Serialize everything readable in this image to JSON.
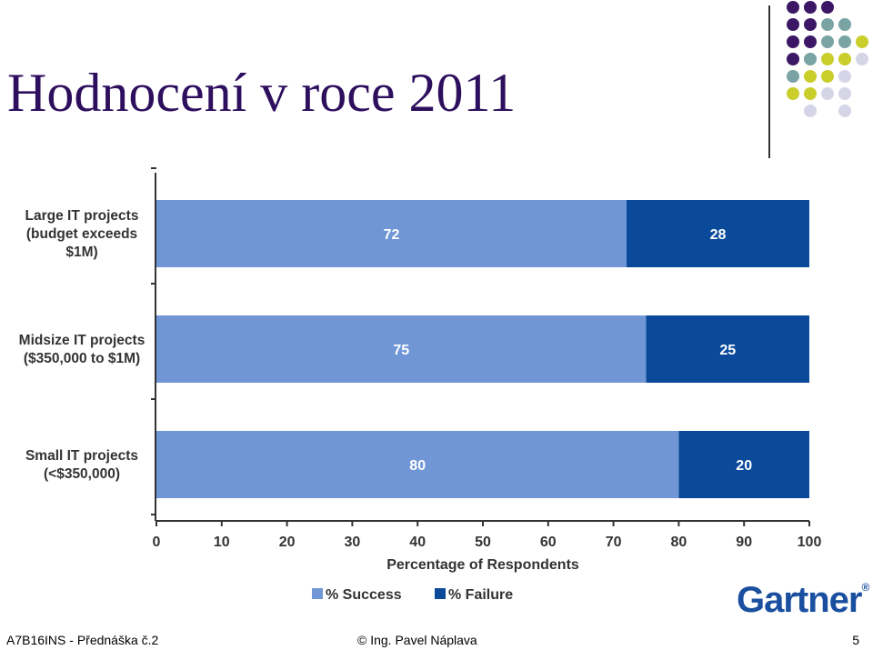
{
  "slide": {
    "title": "Hodnocení v roce 2011",
    "footer_left": "A7B16INS - Přednáška č.2",
    "footer_center": "© Ing. Pavel Náplava",
    "page_number": "5",
    "logo_text": "Gartner",
    "logo_mark": "®"
  },
  "colors": {
    "title": "#2e0f5e",
    "success": "#7096d6",
    "failure": "#0b4a9b",
    "dot_purple": "#3b1766",
    "dot_teal": "#7aa3a3",
    "dot_yellow": "#c9ce2b",
    "dot_lavender": "#d6d5e8"
  },
  "decoration_dots": [
    [
      "purple",
      "purple",
      "purple",
      "",
      ""
    ],
    [
      "purple",
      "purple",
      "teal",
      "teal",
      ""
    ],
    [
      "purple",
      "purple",
      "teal",
      "teal",
      "yellow"
    ],
    [
      "purple",
      "teal",
      "yellow",
      "yellow",
      "lavender"
    ],
    [
      "teal",
      "yellow",
      "yellow",
      "lavender",
      ""
    ],
    [
      "yellow",
      "yellow",
      "lavender",
      "lavender",
      ""
    ],
    [
      "",
      "lavender",
      "",
      "lavender",
      ""
    ]
  ],
  "chart_data": {
    "type": "bar",
    "orientation": "horizontal",
    "stacked": true,
    "categories": [
      [
        "Large IT projects",
        "(budget exceeds",
        "$1M)"
      ],
      [
        "Midsize IT projects",
        "($350,000 to $1M)"
      ],
      [
        "Small IT projects",
        "(<$350,000)"
      ]
    ],
    "series": [
      {
        "name": "% Success",
        "values": [
          72,
          75,
          80
        ]
      },
      {
        "name": "% Failure",
        "values": [
          28,
          25,
          20
        ]
      }
    ],
    "xlabel": "Percentage of Respondents",
    "xlim": [
      0,
      100
    ],
    "xticks": [
      0,
      10,
      20,
      30,
      40,
      50,
      60,
      70,
      80,
      90,
      100
    ],
    "legend_position": "bottom",
    "grid": false
  }
}
